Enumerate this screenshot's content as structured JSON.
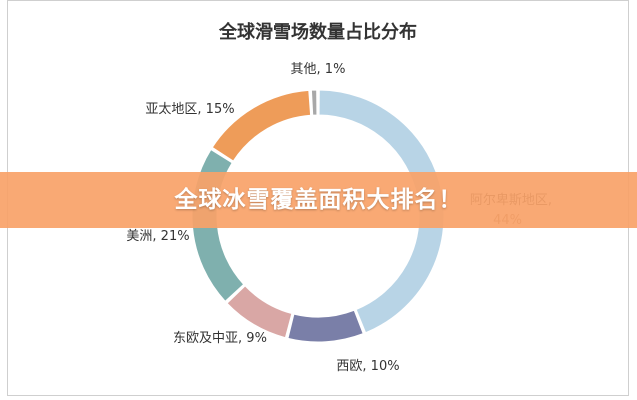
{
  "banner": {
    "text": "全球冰雪覆盖面积大排名！"
  },
  "chart_data": {
    "type": "pie",
    "donut": true,
    "title": "全球滑雪场数量占比分布",
    "legend": "none",
    "slices": [
      {
        "label": "阿尔卑斯地区, 44%",
        "value": 44,
        "color": "#b8d4e6"
      },
      {
        "label": "西欧, 10%",
        "value": 10,
        "color": "#7a7fa8"
      },
      {
        "label": "东欧及中亚, 9%",
        "value": 9,
        "color": "#d9a7a5"
      },
      {
        "label": "美洲, 21%",
        "value": 21,
        "color": "#7fb0ae"
      },
      {
        "label": "亚太地区, 15%",
        "value": 15,
        "color": "#ee9c59"
      },
      {
        "label": "其他, 1%",
        "value": 1,
        "color": "#a8a8a8"
      }
    ]
  }
}
